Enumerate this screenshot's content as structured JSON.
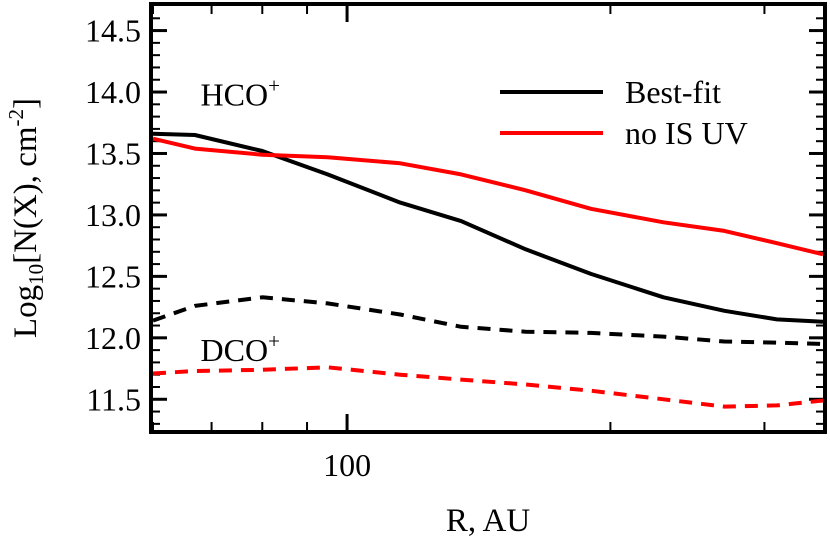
{
  "chart_data": {
    "type": "line",
    "xlabel": "R, AU",
    "ylabel": {
      "prefix": "Log",
      "sub": "10",
      "mid": "[N(X), cm",
      "sup": "-2",
      "suffix": "]"
    },
    "xscale": "log",
    "xlim": [
      60,
      350
    ],
    "ylim": [
      11.25,
      14.7
    ],
    "x_ticks": [
      100
    ],
    "x_tick_labels": [
      "100"
    ],
    "y_ticks": [
      11.5,
      12.0,
      12.5,
      13.0,
      13.5,
      14.0,
      14.5
    ],
    "y_tick_labels": [
      "11.5",
      "12.0",
      "12.5",
      "13.0",
      "13.5",
      "14.0",
      "14.5"
    ],
    "annotations": [
      {
        "text": "HCO",
        "sup": "+",
        "x": 68,
        "y": 13.98
      },
      {
        "text": "DCO",
        "sup": "+",
        "x": 68,
        "y": 11.9
      }
    ],
    "legend": {
      "placement": "top-right",
      "entries": [
        "Best-fit",
        "no IS UV"
      ]
    },
    "series": [
      {
        "name": "Best-fit",
        "group": "HCO+",
        "color": "#000000",
        "dash": "solid",
        "x": [
          60,
          67,
          80,
          95,
          115,
          135,
          160,
          190,
          230,
          270,
          310,
          350
        ],
        "y": [
          13.66,
          13.65,
          13.52,
          13.33,
          13.1,
          12.95,
          12.72,
          12.52,
          12.33,
          12.22,
          12.15,
          12.13
        ]
      },
      {
        "name": "no IS UV",
        "group": "HCO+",
        "color": "#ff0000",
        "dash": "solid",
        "x": [
          60,
          67,
          80,
          95,
          115,
          135,
          160,
          190,
          230,
          270,
          310,
          350
        ],
        "y": [
          13.62,
          13.54,
          13.49,
          13.47,
          13.42,
          13.33,
          13.2,
          13.05,
          12.94,
          12.87,
          12.77,
          12.68
        ]
      },
      {
        "name": "Best-fit",
        "group": "DCO+",
        "color": "#000000",
        "dash": "dashed",
        "x": [
          60,
          67,
          80,
          95,
          115,
          135,
          160,
          190,
          230,
          270,
          310,
          350
        ],
        "y": [
          12.14,
          12.26,
          12.33,
          12.28,
          12.19,
          12.09,
          12.05,
          12.04,
          12.01,
          11.97,
          11.96,
          11.95
        ]
      },
      {
        "name": "no IS UV",
        "group": "DCO+",
        "color": "#ff0000",
        "dash": "dashed",
        "x": [
          60,
          67,
          80,
          95,
          115,
          135,
          160,
          190,
          230,
          270,
          310,
          350
        ],
        "y": [
          11.71,
          11.73,
          11.74,
          11.76,
          11.7,
          11.66,
          11.62,
          11.57,
          11.5,
          11.44,
          11.45,
          11.49
        ]
      }
    ]
  }
}
